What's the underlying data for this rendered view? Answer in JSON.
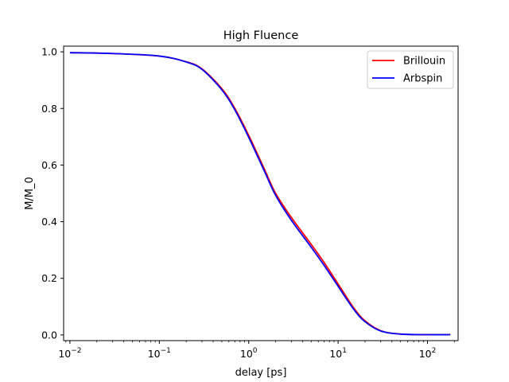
{
  "chart_data": {
    "type": "line",
    "title": "High Fluence",
    "xlabel": "delay [ps]",
    "ylabel": "M/M_0",
    "x_scale": "log",
    "xlim": [
      0.0085,
      220
    ],
    "ylim": [
      -0.02,
      1.02
    ],
    "x_ticks": [
      {
        "value": 0.01,
        "base": "10",
        "exp": "−2"
      },
      {
        "value": 0.1,
        "base": "10",
        "exp": "−1"
      },
      {
        "value": 1,
        "base": "10",
        "exp": "0"
      },
      {
        "value": 10,
        "base": "10",
        "exp": "1"
      },
      {
        "value": 100,
        "base": "10",
        "exp": "2"
      }
    ],
    "y_ticks": [
      {
        "value": 0.0,
        "label": "0.0"
      },
      {
        "value": 0.2,
        "label": "0.2"
      },
      {
        "value": 0.4,
        "label": "0.4"
      },
      {
        "value": 0.6,
        "label": "0.6"
      },
      {
        "value": 0.8,
        "label": "0.8"
      },
      {
        "value": 1.0,
        "label": "1.0"
      }
    ],
    "grid": false,
    "legend_position": "top-right",
    "series": [
      {
        "name": "Brillouin",
        "color": "#ff0000",
        "x": [
          0.01,
          0.03,
          0.1,
          0.2,
          0.3,
          0.5,
          0.7,
          1.0,
          1.5,
          2.0,
          3.0,
          5.0,
          7.0,
          10,
          15,
          20,
          30,
          50,
          100,
          180
        ],
        "y": [
          0.997,
          0.994,
          0.985,
          0.965,
          0.94,
          0.87,
          0.8,
          0.705,
          0.585,
          0.5,
          0.415,
          0.32,
          0.255,
          0.18,
          0.095,
          0.05,
          0.015,
          0.003,
          0.001,
          0.001
        ]
      },
      {
        "name": "Arbspin",
        "color": "#0000ff",
        "x": [
          0.01,
          0.03,
          0.1,
          0.2,
          0.3,
          0.5,
          0.7,
          1.0,
          1.5,
          2.0,
          3.0,
          5.0,
          7.0,
          10,
          15,
          20,
          30,
          50,
          100,
          180
        ],
        "y": [
          0.997,
          0.994,
          0.985,
          0.964,
          0.938,
          0.866,
          0.795,
          0.698,
          0.578,
          0.493,
          0.405,
          0.31,
          0.245,
          0.172,
          0.09,
          0.047,
          0.014,
          0.003,
          0.001,
          0.001
        ]
      }
    ]
  }
}
